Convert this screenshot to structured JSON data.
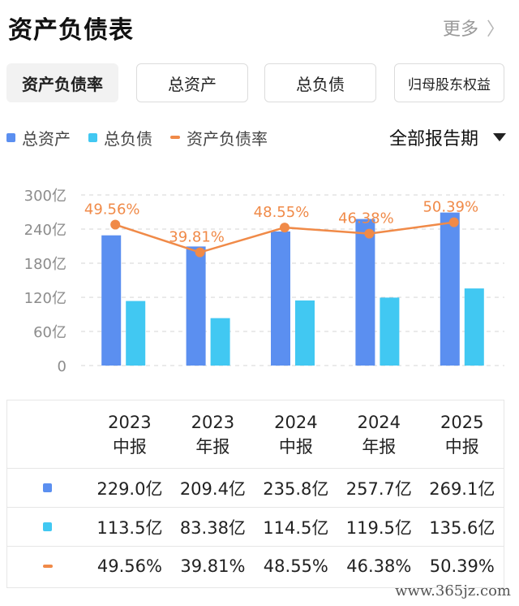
{
  "header": {
    "title": "资产负债表",
    "more_label": "更多",
    "more_chevron": "〉"
  },
  "tabs": [
    {
      "label": "资产负债率",
      "active": true
    },
    {
      "label": "总资产",
      "active": false
    },
    {
      "label": "总负债",
      "active": false
    },
    {
      "label": "归母股东权益",
      "active": false
    }
  ],
  "legend": [
    {
      "label": "总资产",
      "color": "#5b8ff0",
      "shape": "square"
    },
    {
      "label": "总负债",
      "color": "#41c8f2",
      "shape": "square"
    },
    {
      "label": "资产负债率",
      "color": "#f08a48",
      "shape": "line"
    }
  ],
  "period_filter": {
    "label": "全部报告期"
  },
  "chart_data": {
    "type": "bar",
    "categories": [
      "2023中报",
      "2023年报",
      "2024中报",
      "2024年报",
      "2025中报"
    ],
    "series": [
      {
        "name": "总资产",
        "values": [
          229.0,
          209.4,
          235.8,
          257.7,
          269.1
        ],
        "color": "#5b8ff0",
        "unit": "亿"
      },
      {
        "name": "总负债",
        "values": [
          113.5,
          83.38,
          114.5,
          119.5,
          135.6
        ],
        "color": "#41c8f2",
        "unit": "亿"
      }
    ],
    "line_series": {
      "name": "资产负债率",
      "values": [
        49.56,
        39.81,
        48.55,
        46.38,
        50.39
      ],
      "labels": [
        "49.56%",
        "39.81%",
        "48.55%",
        "46.38%",
        "50.39%"
      ],
      "color": "#f08a48"
    },
    "y_ticks": [
      "0",
      "60亿",
      "120亿",
      "180亿",
      "240亿",
      "300亿"
    ],
    "ylim": [
      0,
      300
    ],
    "grid": true,
    "legend_position": "top-left"
  },
  "table": {
    "columns": [
      {
        "year": "2023",
        "type": "中报"
      },
      {
        "year": "2023",
        "type": "年报"
      },
      {
        "year": "2024",
        "type": "中报"
      },
      {
        "year": "2024",
        "type": "年报"
      },
      {
        "year": "2025",
        "type": "中报"
      }
    ],
    "rows": [
      {
        "color": "#5b8ff0",
        "shape": "square",
        "values": [
          "229.0亿",
          "209.4亿",
          "235.8亿",
          "257.7亿",
          "269.1亿"
        ]
      },
      {
        "color": "#41c8f2",
        "shape": "square",
        "values": [
          "113.5亿",
          "83.38亿",
          "114.5亿",
          "119.5亿",
          "135.6亿"
        ]
      },
      {
        "color": "#f08a48",
        "shape": "line",
        "values": [
          "49.56%",
          "39.81%",
          "48.55%",
          "46.38%",
          "50.39%"
        ]
      }
    ]
  },
  "watermark": "www.365jz.com"
}
